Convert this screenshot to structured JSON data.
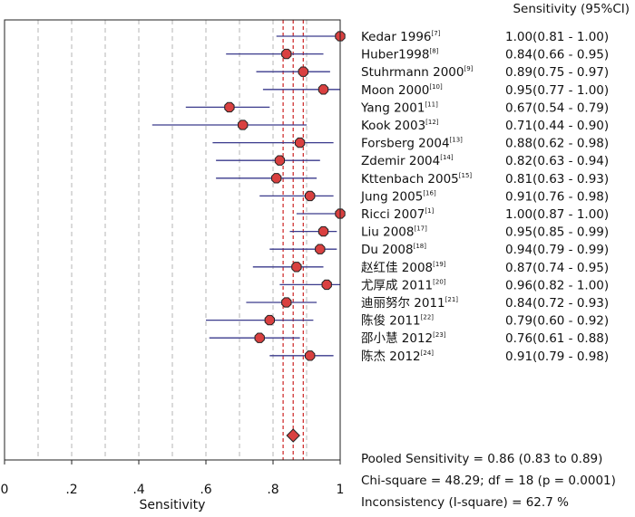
{
  "chart_data": {
    "type": "forest",
    "header": "Sensitivity (95%CI)",
    "xlabel": "Sensitivity",
    "xlim": [
      0,
      1
    ],
    "x_ticks": [
      "0",
      ".2",
      ".4",
      ".6",
      ".8",
      "1"
    ],
    "grid": "vertical dashed",
    "colors": {
      "point": "#d94040",
      "ci_line": "#3a3a8c",
      "pooled_line": "#cc2222"
    },
    "studies": [
      {
        "name": "Kedar 1996",
        "ref": "[7]",
        "est": 1.0,
        "lo": 0.81,
        "hi": 1.0,
        "ci_text": "1.00(0.81 - 1.00)"
      },
      {
        "name": "Huber1998",
        "ref": "[8]",
        "est": 0.84,
        "lo": 0.66,
        "hi": 0.95,
        "ci_text": "0.84(0.66 - 0.95)"
      },
      {
        "name": "Stuhrmann 2000",
        "ref": "[9]",
        "est": 0.89,
        "lo": 0.75,
        "hi": 0.97,
        "ci_text": "0.89(0.75 - 0.97)"
      },
      {
        "name": "Moon 2000",
        "ref": "[10]",
        "est": 0.95,
        "lo": 0.77,
        "hi": 1.0,
        "ci_text": "0.95(0.77 - 1.00)"
      },
      {
        "name": "Yang 2001",
        "ref": "[11]",
        "est": 0.67,
        "lo": 0.54,
        "hi": 0.79,
        "ci_text": "0.67(0.54 - 0.79)"
      },
      {
        "name": "Kook 2003",
        "ref": "[12]",
        "est": 0.71,
        "lo": 0.44,
        "hi": 0.9,
        "ci_text": "0.71(0.44 - 0.90)"
      },
      {
        "name": "Forsberg 2004",
        "ref": "[13]",
        "est": 0.88,
        "lo": 0.62,
        "hi": 0.98,
        "ci_text": "0.88(0.62 - 0.98)"
      },
      {
        "name": "Zdemir 2004",
        "ref": "[14]",
        "est": 0.82,
        "lo": 0.63,
        "hi": 0.94,
        "ci_text": "0.82(0.63 - 0.94)"
      },
      {
        "name": "Kttenbach 2005",
        "ref": "[15]",
        "est": 0.81,
        "lo": 0.63,
        "hi": 0.93,
        "ci_text": "0.81(0.63 - 0.93)"
      },
      {
        "name": "Jung 2005",
        "ref": "[16]",
        "est": 0.91,
        "lo": 0.76,
        "hi": 0.98,
        "ci_text": "0.91(0.76 - 0.98)"
      },
      {
        "name": "Ricci 2007",
        "ref": "[1]",
        "est": 1.0,
        "lo": 0.87,
        "hi": 1.0,
        "ci_text": "1.00(0.87 - 1.00)"
      },
      {
        "name": "Liu 2008",
        "ref": "[17]",
        "est": 0.95,
        "lo": 0.85,
        "hi": 0.99,
        "ci_text": "0.95(0.85 - 0.99)"
      },
      {
        "name": "Du 2008",
        "ref": "[18]",
        "est": 0.94,
        "lo": 0.79,
        "hi": 0.99,
        "ci_text": "0.94(0.79 - 0.99)"
      },
      {
        "name": "赵红佳 2008",
        "ref": "[19]",
        "est": 0.87,
        "lo": 0.74,
        "hi": 0.95,
        "ci_text": "0.87(0.74 - 0.95)"
      },
      {
        "name": "尤厚成 2011",
        "ref": "[20]",
        "est": 0.96,
        "lo": 0.82,
        "hi": 1.0,
        "ci_text": "0.96(0.82 - 1.00)"
      },
      {
        "name": "迪丽努尔 2011",
        "ref": "[21]",
        "est": 0.84,
        "lo": 0.72,
        "hi": 0.93,
        "ci_text": "0.84(0.72 - 0.93)"
      },
      {
        "name": "陈俊 2011",
        "ref": "[22]",
        "est": 0.79,
        "lo": 0.6,
        "hi": 0.92,
        "ci_text": "0.79(0.60 - 0.92)"
      },
      {
        "name": "邵小慧 2012",
        "ref": "[23]",
        "est": 0.76,
        "lo": 0.61,
        "hi": 0.88,
        "ci_text": "0.76(0.61 - 0.88)"
      },
      {
        "name": "陈杰 2012",
        "ref": "[24]",
        "est": 0.91,
        "lo": 0.79,
        "hi": 0.98,
        "ci_text": "0.91(0.79 - 0.98)"
      }
    ],
    "pooled": {
      "est": 0.86,
      "lo": 0.83,
      "hi": 0.89
    },
    "stats_text": [
      "Pooled Sensitivity = 0.86 (0.83 to 0.89)",
      "Chi-square = 48.29; df = 18 (p = 0.0001)",
      "Inconsistency (I-square) = 62.7 %"
    ]
  }
}
